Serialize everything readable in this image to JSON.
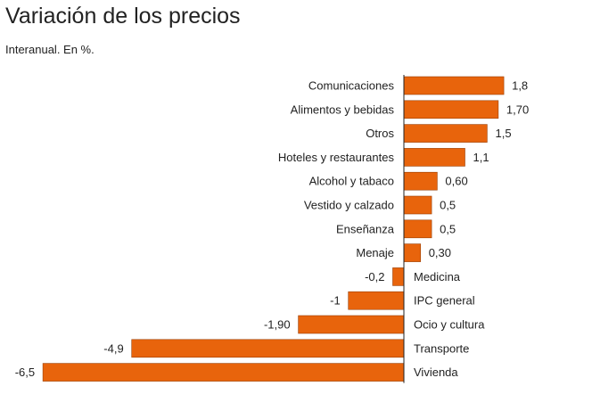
{
  "title": "Variación de los precios",
  "subtitle": "Interanual. En %.",
  "colors": {
    "bar": "#e8640c",
    "bar_stroke": "#9a3f05",
    "axis": "#222222"
  },
  "chart_data": {
    "type": "bar",
    "orientation": "horizontal",
    "title": "Variación de los precios",
    "subtitle": "Interanual. En %.",
    "categories": [
      "Comunicaciones",
      "Alimentos y bebidas",
      "Otros",
      "Hoteles y restaurantes",
      "Alcohol y tabaco",
      "Vestido y calzado",
      "Enseñanza",
      "Menaje",
      "Medicina",
      "IPC general",
      "Ocio y cultura",
      "Transporte",
      "Vivienda"
    ],
    "values": [
      1.8,
      1.7,
      1.5,
      1.1,
      0.6,
      0.5,
      0.5,
      0.3,
      -0.2,
      -1,
      -1.9,
      -4.9,
      -6.5
    ],
    "value_labels": [
      "1,8",
      "1,70",
      "1,5",
      "1,1",
      "0,60",
      "0,5",
      "0,5",
      "0,30",
      "-0,2",
      "-1",
      "-1,90",
      "-4,9",
      "-6,5"
    ],
    "xlim": [
      -6.5,
      1.8
    ],
    "grid": false,
    "legend": "none"
  }
}
